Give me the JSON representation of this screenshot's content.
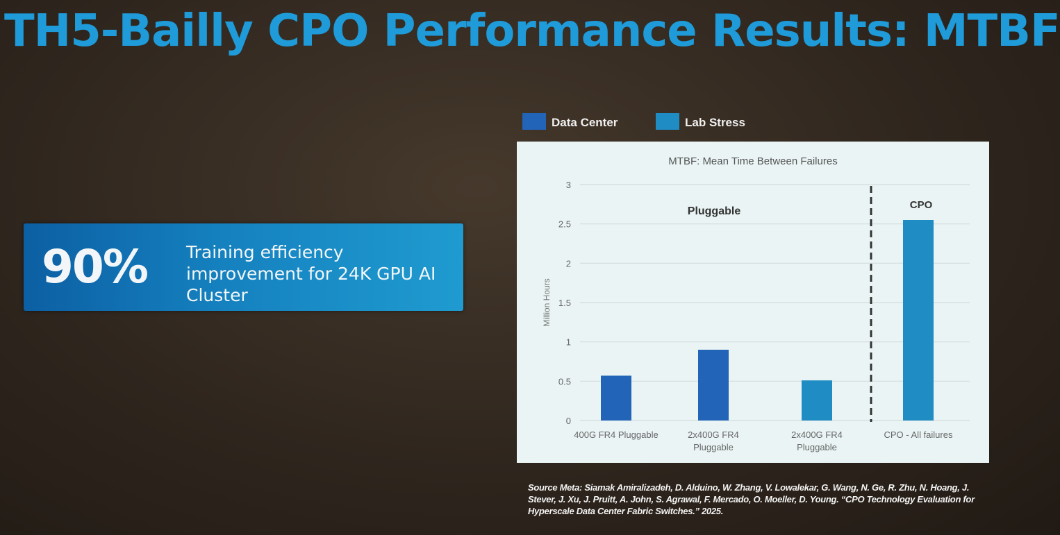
{
  "title": "TH5-Bailly CPO Performance Results: MTBF",
  "stat": {
    "value": "90%",
    "text": "Training efficiency improvement for 24K GPU AI Cluster"
  },
  "source": {
    "lead": "Source Meta:",
    "text": "Siamak Amiralizadeh, D. Alduino, W. Zhang, V. Lowalekar, G. Wang, N. Ge, R. Zhu, N. Hoang, J. Stever, J. Xu, J. Pruitt, A. John, S. Agrawal, F. Mercado, O. Moeller, D. Young. “CPO Technology Evaluation for Hyperscale Data Center Fabric Switches.” 2025."
  },
  "colors": {
    "title": "#1e9bd8",
    "data_center": "#2265b8",
    "lab_stress": "#1f8cc4",
    "chart_bg": "#eaf4f4",
    "grid": "#d4dcdc"
  },
  "chart_data": {
    "type": "bar",
    "title": "MTBF: Mean Time Between Failures",
    "ylabel": "Million Hours",
    "xlabel": "",
    "ylim": [
      0,
      3
    ],
    "yticks": [
      "0",
      "0.5",
      "1",
      "1.5",
      "2",
      "2.5",
      "3"
    ],
    "grid": true,
    "legend": [
      {
        "name": "Data Center",
        "color": "#2265b8"
      },
      {
        "name": "Lab Stress",
        "color": "#1f8cc4"
      }
    ],
    "legend_position": "top-left",
    "categories": [
      [
        "400G FR4 Pluggable"
      ],
      [
        "2x400G FR4",
        "Pluggable"
      ],
      [
        "2x400G FR4",
        "Pluggable"
      ],
      [
        "CPO - All failures"
      ]
    ],
    "values": [
      0.57,
      0.9,
      0.51,
      2.55
    ],
    "series_of_bar": [
      "Data Center",
      "Data Center",
      "Lab Stress",
      "Lab Stress"
    ],
    "group_labels": [
      "Pluggable",
      "CPO"
    ]
  }
}
